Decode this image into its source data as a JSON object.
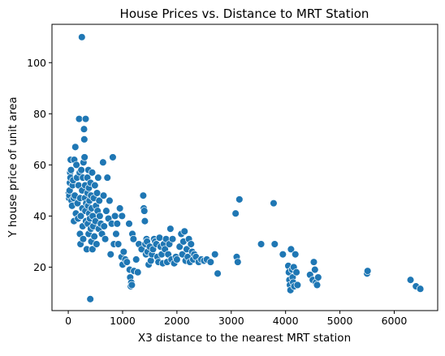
{
  "chart_data": {
    "type": "scatter",
    "title": "House Prices vs. Distance to MRT Station",
    "xlabel": "X3 distance to the nearest MRT station",
    "ylabel": "Y house price of unit area",
    "xlim": [
      -300,
      6800
    ],
    "ylim": [
      3,
      115
    ],
    "xticks": [
      0,
      1000,
      2000,
      3000,
      4000,
      5000,
      6000
    ],
    "yticks": [
      20,
      40,
      60,
      80,
      100
    ],
    "grid": false,
    "legend": "none",
    "marker_color": "#1f77b4",
    "marker_edge_color": "#ffffff",
    "points": [
      [
        10,
        49
      ],
      [
        15,
        47
      ],
      [
        20,
        48
      ],
      [
        25,
        50
      ],
      [
        30,
        53
      ],
      [
        35,
        57
      ],
      [
        40,
        55
      ],
      [
        45,
        62
      ],
      [
        50,
        58
      ],
      [
        60,
        46
      ],
      [
        70,
        44
      ],
      [
        80,
        52
      ],
      [
        90,
        54
      ],
      [
        100,
        47
      ],
      [
        105,
        38
      ],
      [
        110,
        62
      ],
      [
        120,
        48
      ],
      [
        130,
        67
      ],
      [
        140,
        41
      ],
      [
        150,
        60
      ],
      [
        160,
        55
      ],
      [
        170,
        45
      ],
      [
        180,
        39
      ],
      [
        190,
        52
      ],
      [
        200,
        78
      ],
      [
        210,
        57
      ],
      [
        215,
        33
      ],
      [
        220,
        47
      ],
      [
        225,
        29
      ],
      [
        230,
        40
      ],
      [
        240,
        58
      ],
      [
        250,
        110
      ],
      [
        255,
        50
      ],
      [
        260,
        43
      ],
      [
        265,
        36
      ],
      [
        270,
        55
      ],
      [
        275,
        31
      ],
      [
        280,
        61
      ],
      [
        290,
        74
      ],
      [
        295,
        70
      ],
      [
        300,
        63
      ],
      [
        305,
        47
      ],
      [
        310,
        52
      ],
      [
        315,
        42
      ],
      [
        320,
        78
      ],
      [
        325,
        38
      ],
      [
        330,
        45
      ],
      [
        340,
        27
      ],
      [
        350,
        55
      ],
      [
        355,
        49
      ],
      [
        360,
        37
      ],
      [
        365,
        44
      ],
      [
        370,
        58
      ],
      [
        375,
        33
      ],
      [
        380,
        51
      ],
      [
        385,
        41
      ],
      [
        390,
        46
      ],
      [
        400,
        39
      ],
      [
        405,
        7.5
      ],
      [
        410,
        53
      ],
      [
        415,
        35
      ],
      [
        420,
        48
      ],
      [
        425,
        30
      ],
      [
        430,
        43
      ],
      [
        440,
        57
      ],
      [
        445,
        27
      ],
      [
        450,
        40
      ],
      [
        460,
        36
      ],
      [
        470,
        47
      ],
      [
        480,
        32
      ],
      [
        490,
        52
      ],
      [
        500,
        38
      ],
      [
        510,
        44
      ],
      [
        520,
        29
      ],
      [
        530,
        49
      ],
      [
        540,
        42
      ],
      [
        550,
        55
      ],
      [
        560,
        35
      ],
      [
        570,
        46
      ],
      [
        580,
        40
      ],
      [
        600,
        37
      ],
      [
        620,
        33
      ],
      [
        640,
        61
      ],
      [
        650,
        48
      ],
      [
        660,
        36
      ],
      [
        680,
        31
      ],
      [
        700,
        42
      ],
      [
        720,
        55
      ],
      [
        740,
        39
      ],
      [
        760,
        46
      ],
      [
        780,
        25
      ],
      [
        800,
        37
      ],
      [
        820,
        63
      ],
      [
        840,
        29
      ],
      [
        860,
        40
      ],
      [
        880,
        33
      ],
      [
        900,
        37
      ],
      [
        920,
        29
      ],
      [
        950,
        43
      ],
      [
        980,
        24
      ],
      [
        990,
        40
      ],
      [
        1000,
        21
      ],
      [
        1020,
        26
      ],
      [
        1050,
        23
      ],
      [
        1080,
        22
      ],
      [
        1120,
        37
      ],
      [
        1130,
        19
      ],
      [
        1140,
        16
      ],
      [
        1150,
        12.5
      ],
      [
        1160,
        14
      ],
      [
        1170,
        13
      ],
      [
        1180,
        33
      ],
      [
        1200,
        31
      ],
      [
        1210,
        18.5
      ],
      [
        1250,
        23
      ],
      [
        1280,
        18
      ],
      [
        1300,
        29
      ],
      [
        1350,
        27
      ],
      [
        1380,
        48
      ],
      [
        1390,
        43
      ],
      [
        1400,
        42
      ],
      [
        1410,
        38
      ],
      [
        1420,
        29
      ],
      [
        1430,
        25
      ],
      [
        1440,
        31
      ],
      [
        1450,
        30
      ],
      [
        1460,
        26
      ],
      [
        1480,
        21
      ],
      [
        1500,
        28
      ],
      [
        1520,
        22.5
      ],
      [
        1540,
        25
      ],
      [
        1560,
        27
      ],
      [
        1580,
        31
      ],
      [
        1600,
        30
      ],
      [
        1620,
        29
      ],
      [
        1640,
        24
      ],
      [
        1660,
        22
      ],
      [
        1680,
        31.5
      ],
      [
        1700,
        28
      ],
      [
        1720,
        25
      ],
      [
        1740,
        21.5
      ],
      [
        1760,
        29
      ],
      [
        1780,
        27
      ],
      [
        1800,
        31
      ],
      [
        1820,
        22
      ],
      [
        1840,
        25
      ],
      [
        1860,
        29
      ],
      [
        1880,
        35
      ],
      [
        1900,
        23
      ],
      [
        1920,
        31
      ],
      [
        1950,
        21.5
      ],
      [
        1980,
        24
      ],
      [
        2000,
        23
      ],
      [
        2050,
        28
      ],
      [
        2080,
        33
      ],
      [
        2100,
        25
      ],
      [
        2120,
        30
      ],
      [
        2140,
        34
      ],
      [
        2160,
        22.5
      ],
      [
        2180,
        27
      ],
      [
        2200,
        24
      ],
      [
        2220,
        31
      ],
      [
        2240,
        22
      ],
      [
        2260,
        29
      ],
      [
        2280,
        26
      ],
      [
        2300,
        23
      ],
      [
        2320,
        25
      ],
      [
        2350,
        24
      ],
      [
        2400,
        22
      ],
      [
        2450,
        23
      ],
      [
        2500,
        22.5
      ],
      [
        2550,
        23
      ],
      [
        2620,
        22
      ],
      [
        2700,
        25
      ],
      [
        2750,
        17.5
      ],
      [
        3080,
        41
      ],
      [
        3100,
        24
      ],
      [
        3120,
        22
      ],
      [
        3150,
        46.5
      ],
      [
        3550,
        29
      ],
      [
        3780,
        45
      ],
      [
        3800,
        29
      ],
      [
        3950,
        25
      ],
      [
        4050,
        20.5
      ],
      [
        4060,
        18
      ],
      [
        4070,
        15
      ],
      [
        4080,
        13
      ],
      [
        4090,
        11
      ],
      [
        4100,
        27
      ],
      [
        4120,
        19
      ],
      [
        4130,
        16
      ],
      [
        4140,
        14
      ],
      [
        4150,
        20
      ],
      [
        4160,
        12.5
      ],
      [
        4180,
        25
      ],
      [
        4200,
        18
      ],
      [
        4220,
        13
      ],
      [
        4450,
        17
      ],
      [
        4500,
        15
      ],
      [
        4520,
        22
      ],
      [
        4540,
        19
      ],
      [
        4560,
        14
      ],
      [
        4580,
        13
      ],
      [
        4600,
        16
      ],
      [
        5500,
        17.5
      ],
      [
        5510,
        18.5
      ],
      [
        6300,
        15
      ],
      [
        6400,
        12.5
      ],
      [
        6480,
        11.5
      ]
    ]
  }
}
